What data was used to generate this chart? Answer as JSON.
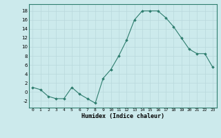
{
  "x": [
    0,
    1,
    2,
    3,
    4,
    5,
    6,
    7,
    8,
    9,
    10,
    11,
    12,
    13,
    14,
    15,
    16,
    17,
    18,
    19,
    20,
    21,
    22,
    23
  ],
  "y": [
    1,
    0.5,
    -1,
    -1.5,
    -1.5,
    1,
    -0.5,
    -1.5,
    -2.5,
    3,
    5,
    8,
    11.5,
    16,
    18,
    18,
    18,
    16.5,
    14.5,
    12,
    9.5,
    8.5,
    8.5,
    5.5
  ],
  "xlabel": "Humidex (Indice chaleur)",
  "line_color": "#2e7d6e",
  "bg_color": "#cceaec",
  "grid_color_minor": "#c4e4e7",
  "grid_color_major": "#b8d8dc",
  "ylim": [
    -3.5,
    19.5
  ],
  "yticks": [
    -2,
    0,
    2,
    4,
    6,
    8,
    10,
    12,
    14,
    16,
    18
  ],
  "xticks": [
    0,
    1,
    2,
    3,
    4,
    5,
    6,
    7,
    8,
    9,
    10,
    11,
    12,
    13,
    14,
    15,
    16,
    17,
    18,
    19,
    20,
    21,
    22,
    23
  ],
  "xlim": [
    -0.5,
    23.5
  ]
}
